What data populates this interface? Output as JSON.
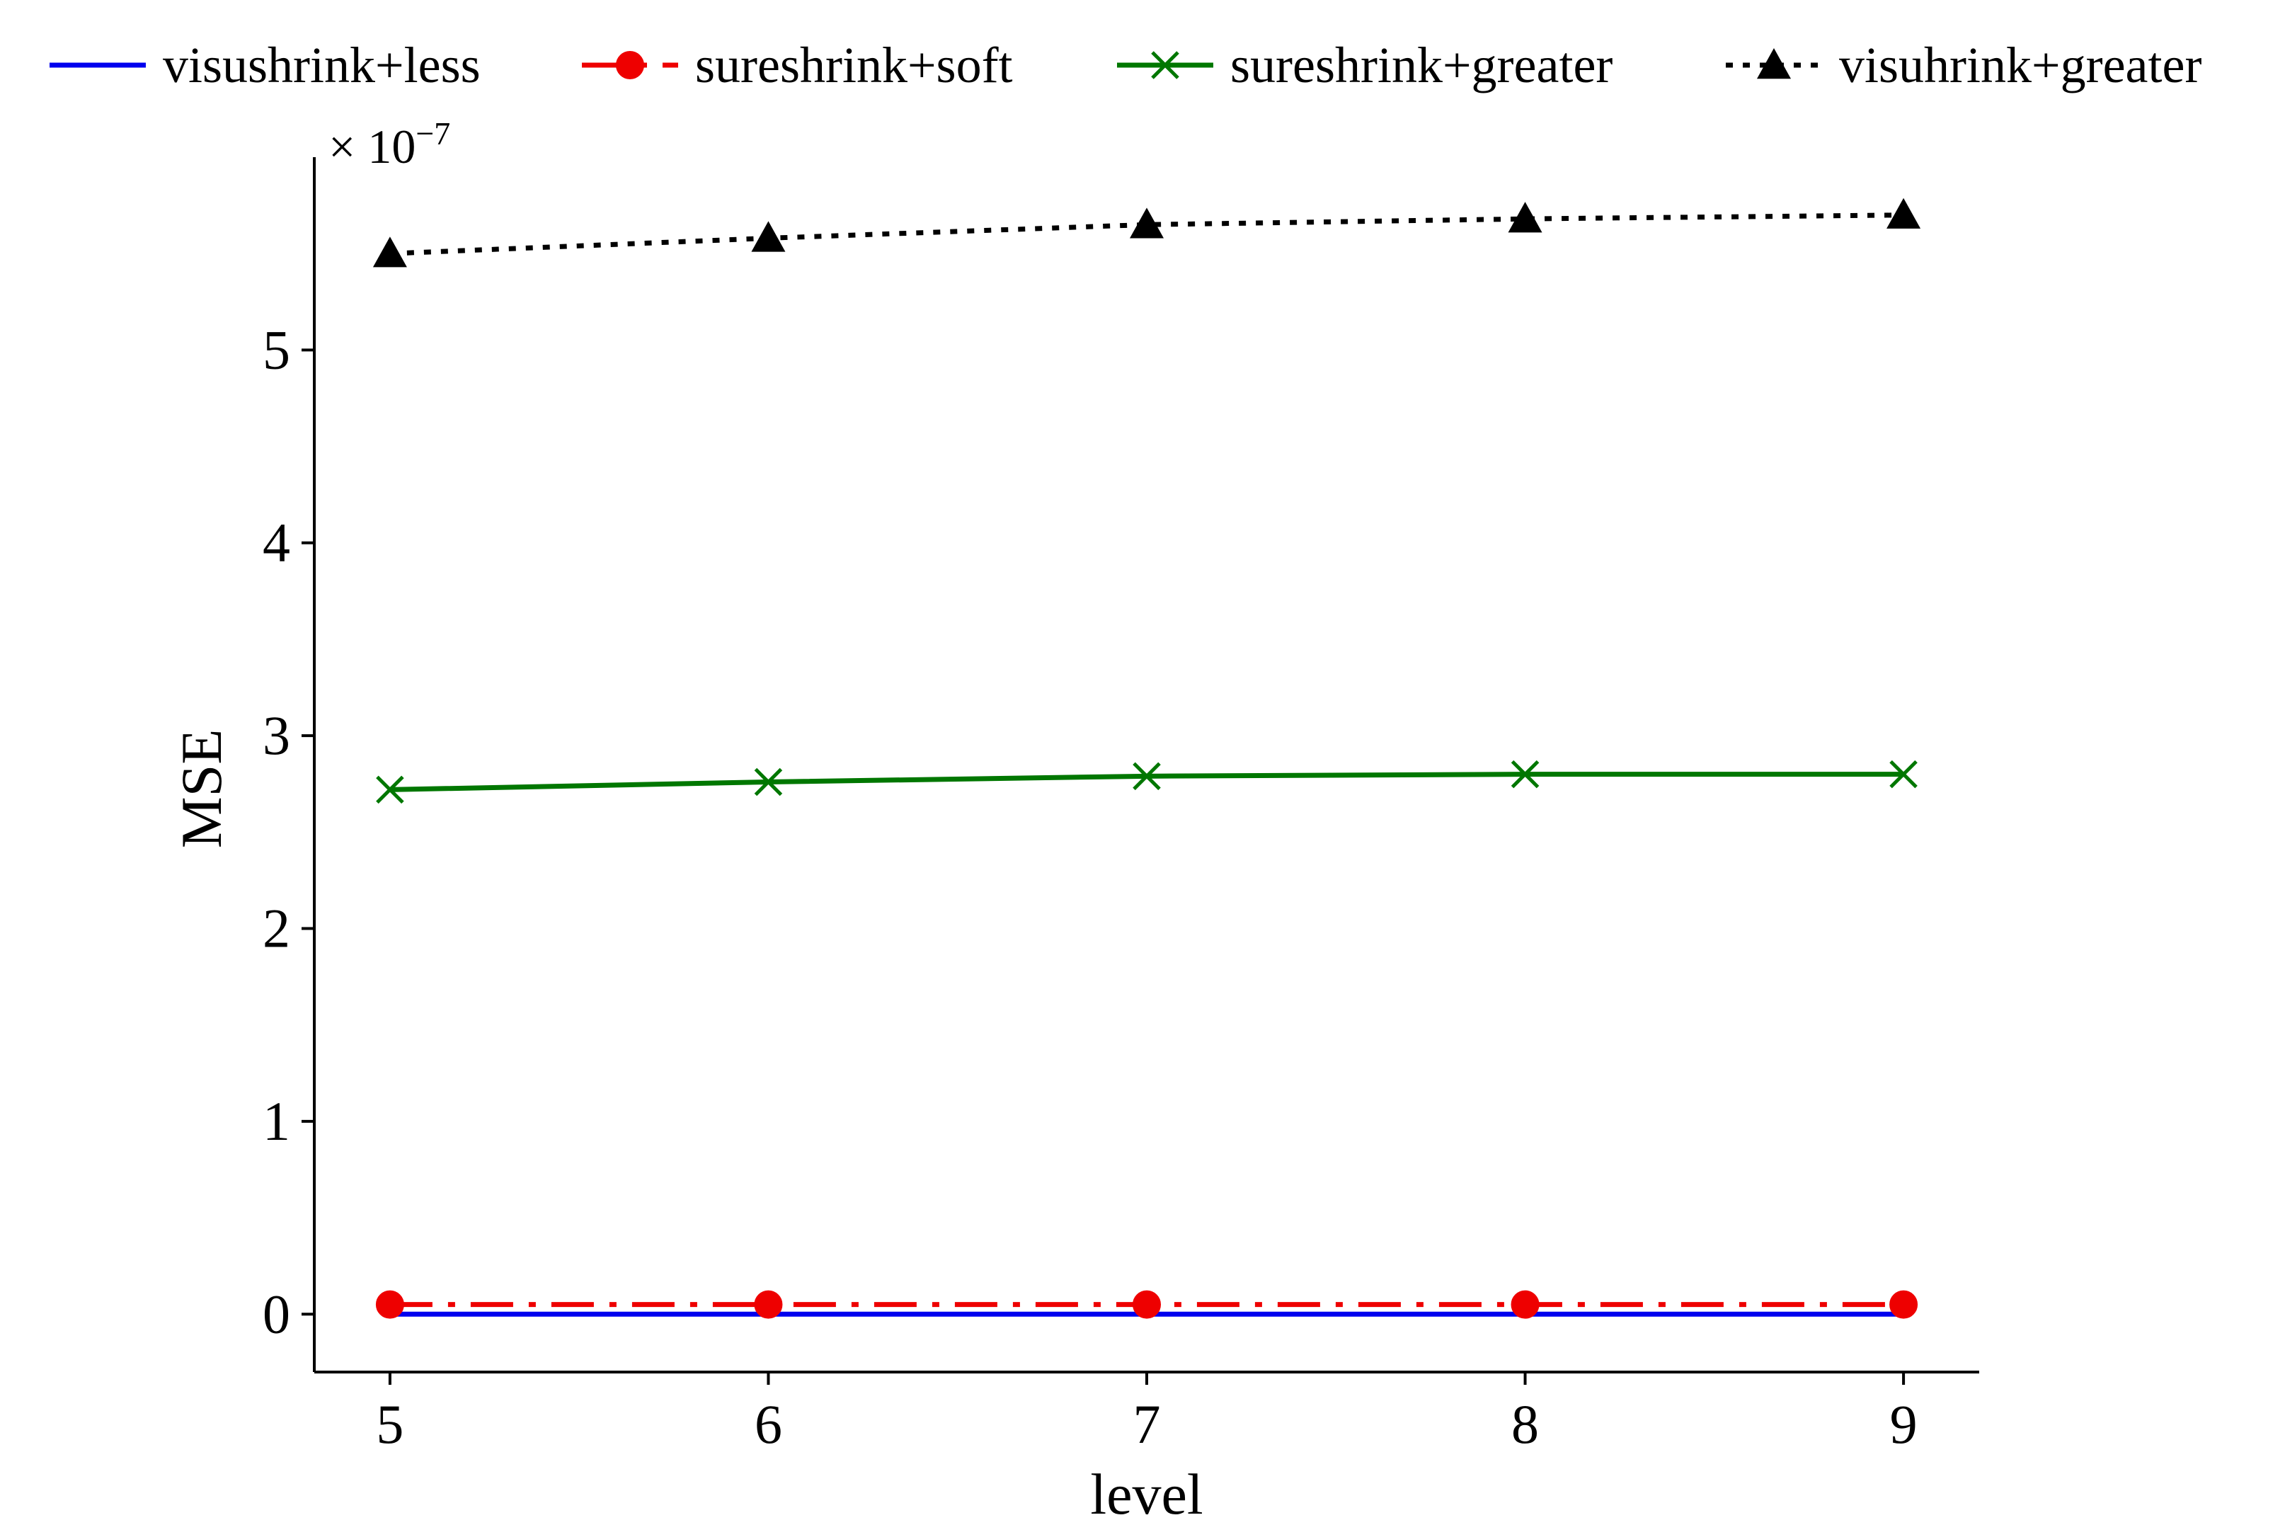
{
  "chart_data": {
    "type": "line",
    "xlabel": "level",
    "ylabel": "MSE",
    "x": [
      5,
      6,
      7,
      8,
      9
    ],
    "xticks": [
      "5",
      "6",
      "7",
      "8",
      "9"
    ],
    "yticks": [
      "0",
      "1",
      "2",
      "3",
      "4",
      "5"
    ],
    "xlim": [
      4.8,
      9.2
    ],
    "ylim": [
      -0.3,
      6.0
    ],
    "y_multiplier": "× 10",
    "y_multiplier_exp": "−7",
    "grid": false,
    "legend_position": "top",
    "series": [
      {
        "name": "visushrink+less",
        "color": "#0000ee",
        "line_style": "solid",
        "marker": "none",
        "values": [
          0.0,
          0.0,
          0.0,
          0.0,
          0.0
        ]
      },
      {
        "name": "sureshrink+soft",
        "color": "#ee0000",
        "line_style": "dashdot",
        "marker": "circle",
        "values": [
          0.05,
          0.05,
          0.05,
          0.05,
          0.05
        ]
      },
      {
        "name": "sureshrink+greater",
        "color": "#007700",
        "line_style": "solid",
        "marker": "x",
        "values": [
          2.72,
          2.76,
          2.79,
          2.8,
          2.8
        ]
      },
      {
        "name": "visuhrink+greater",
        "color": "#000000",
        "line_style": "dotted",
        "marker": "triangle",
        "values": [
          5.5,
          5.58,
          5.65,
          5.68,
          5.7
        ]
      }
    ]
  }
}
